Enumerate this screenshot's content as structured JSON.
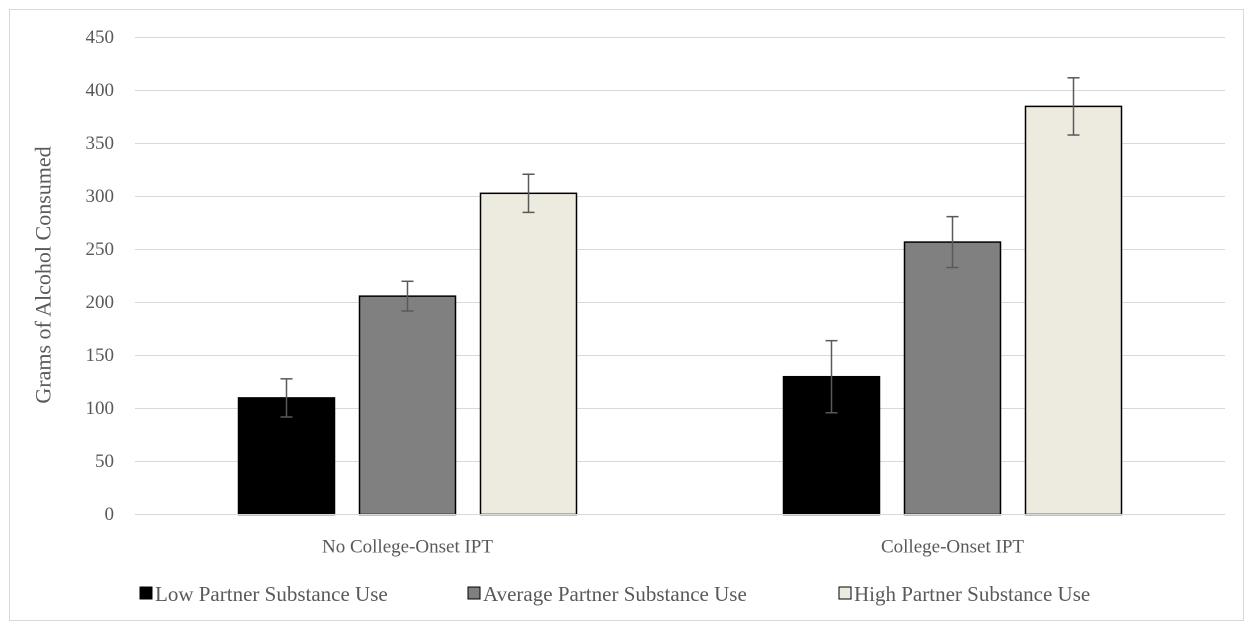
{
  "chart_data": {
    "type": "bar",
    "title": "",
    "xlabel": "",
    "ylabel": "Grams of Alcohol Consumed",
    "ylim": [
      0,
      450
    ],
    "yticks": [
      0,
      50,
      100,
      150,
      200,
      250,
      300,
      350,
      400,
      450
    ],
    "grid": true,
    "legend_position": "bottom",
    "categories": [
      "No College-Onset IPT",
      "College-Onset IPT"
    ],
    "series": [
      {
        "name": "Low Partner Substance Use",
        "color": "#000000",
        "values": [
          110,
          130
        ],
        "error": [
          18,
          34
        ]
      },
      {
        "name": "Average Partner Substance Use",
        "color": "#808080",
        "values": [
          206,
          257
        ],
        "error": [
          14,
          24
        ]
      },
      {
        "name": "High Partner Substance Use",
        "color": "#edeae0",
        "values": [
          303,
          385
        ],
        "error": [
          18,
          27
        ]
      }
    ]
  }
}
